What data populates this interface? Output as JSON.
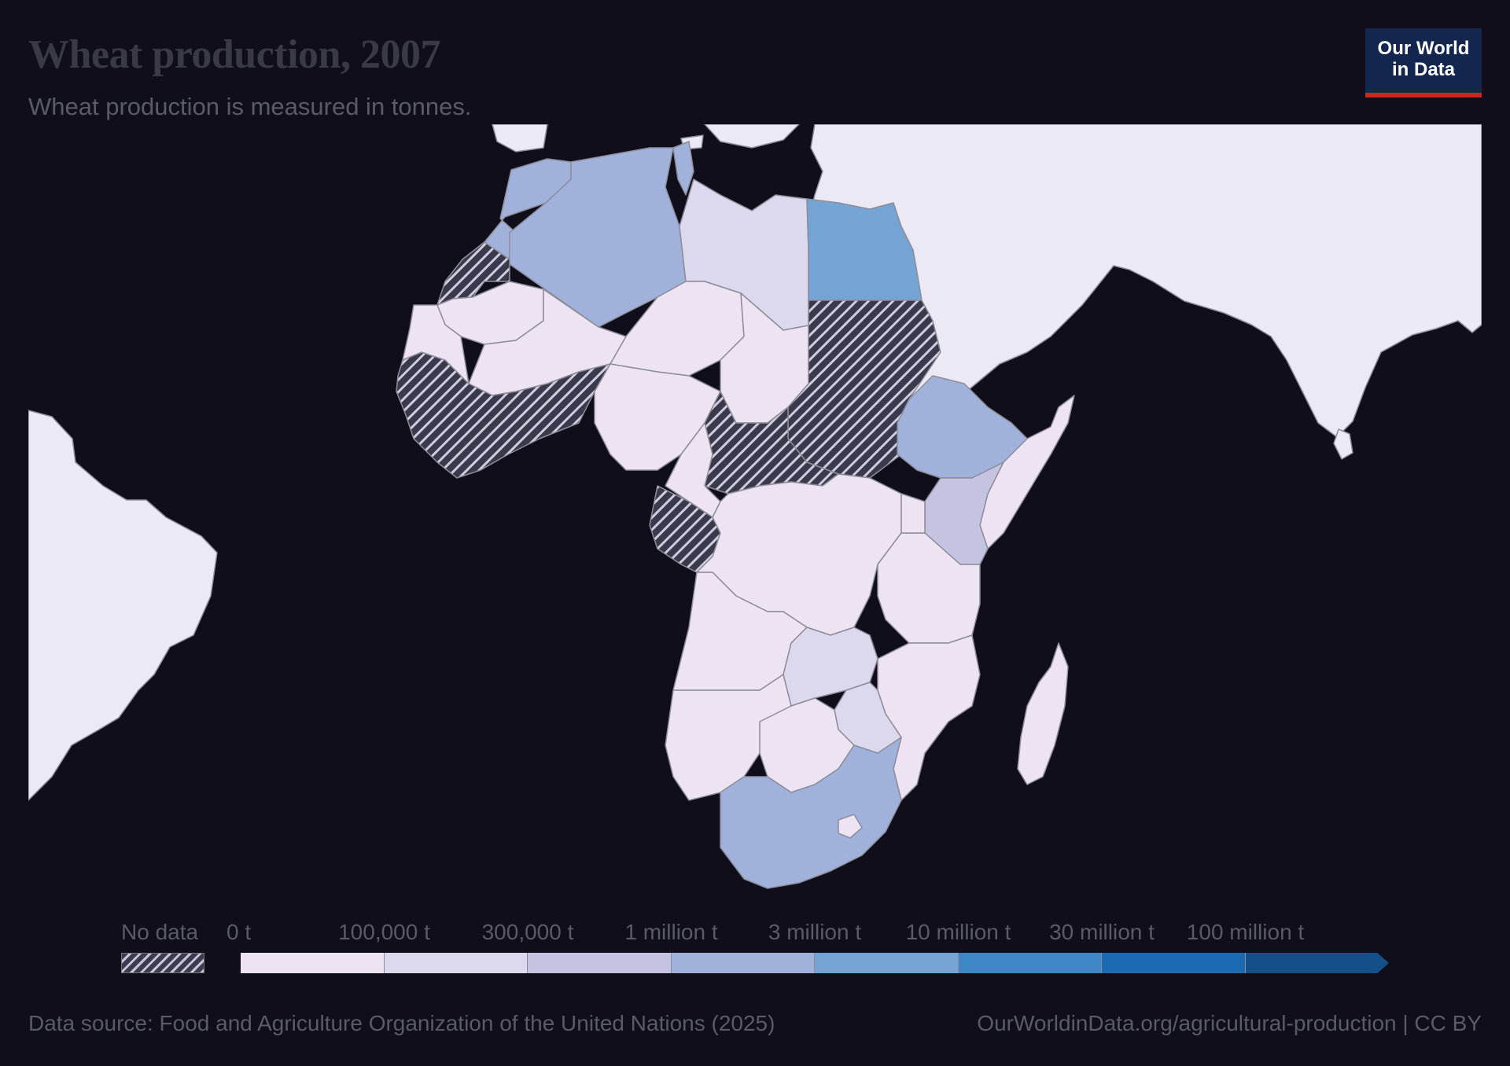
{
  "header": {
    "title": "Wheat production, 2007",
    "subtitle": "Wheat production is measured in tonnes."
  },
  "logo": {
    "line1": "Our World",
    "line2": "in Data"
  },
  "legend": {
    "no_data_label": "No data",
    "ticks": [
      "0 t",
      "100,000 t",
      "300,000 t",
      "1 million t",
      "3 million t",
      "10 million t",
      "30 million t",
      "100 million t"
    ],
    "colors": [
      "#ede3f3",
      "#dcd8ee",
      "#c5c3e2",
      "#a0b2dc",
      "#74a4d4",
      "#3f86c6",
      "#1c6ab2",
      "#13508a"
    ]
  },
  "map": {
    "regions": [
      {
        "region": "Morocco",
        "bin": 3
      },
      {
        "region": "Algeria",
        "bin": 3
      },
      {
        "region": "Libya",
        "bin": 1
      },
      {
        "region": "Egypt",
        "bin": 4
      },
      {
        "region": "Sudan",
        "bin": "no-data"
      },
      {
        "region": "Ethiopia",
        "bin": 3
      },
      {
        "region": "Kenya",
        "bin": 2
      },
      {
        "region": "South Africa",
        "bin": 3
      },
      {
        "region": "Zambia",
        "bin": 1
      },
      {
        "region": "Zimbabwe",
        "bin": 1
      },
      {
        "region": "Western Sahara",
        "bin": "no-data"
      },
      {
        "region": "West Africa coast",
        "bin": "no-data"
      },
      {
        "region": "Central African Republic",
        "bin": "no-data"
      },
      {
        "region": "Gabon / Congo",
        "bin": "no-data"
      }
    ],
    "colors": {
      "ocean": "#0f0e1a",
      "other_land": "#eae9f4",
      "border": "#8d8d9a",
      "no_data_dark": "#3a3a4c",
      "no_data_light": "#cfcddd"
    }
  },
  "footer": {
    "source": "Data source: Food and Agriculture Organization of the United Nations (2025)",
    "url": "OurWorldinData.org/agricultural-production | CC BY"
  }
}
